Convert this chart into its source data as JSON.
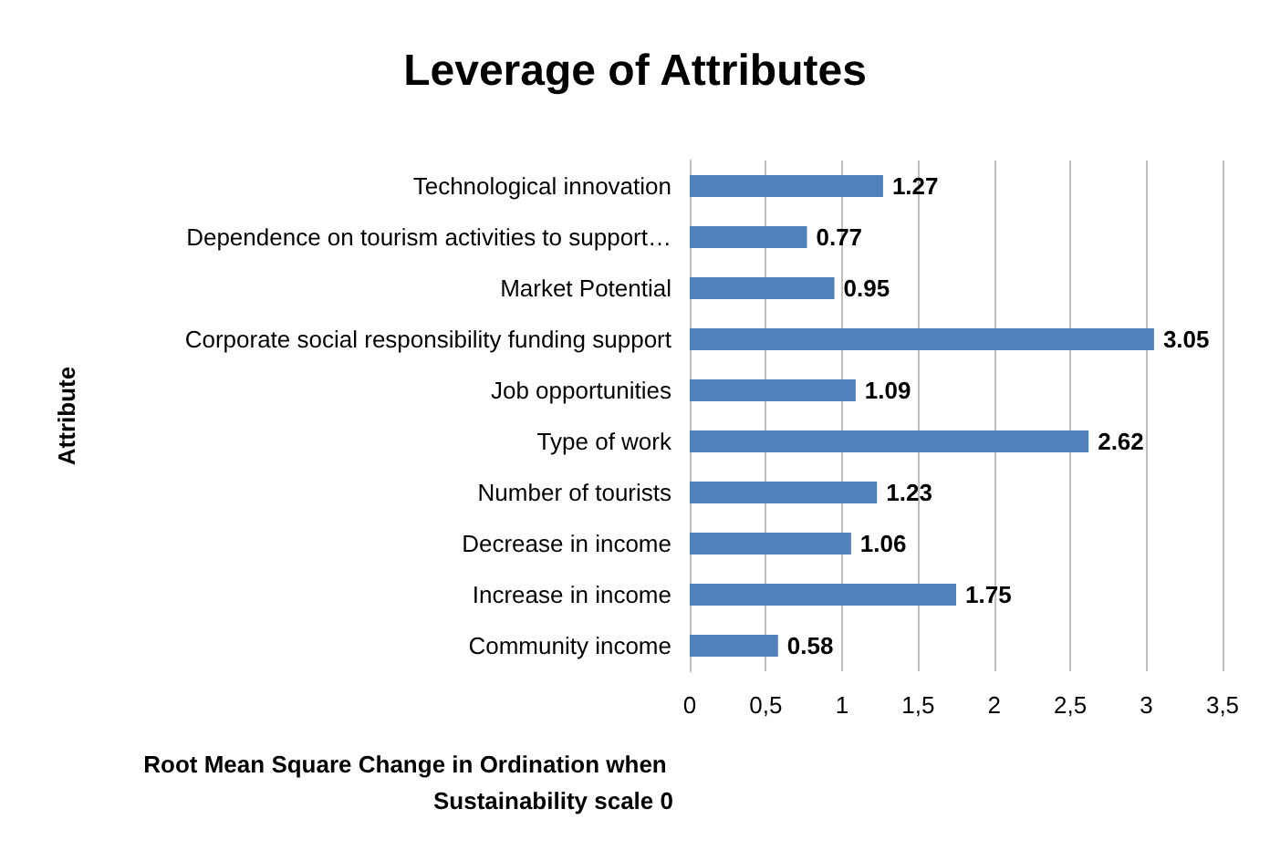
{
  "chart_data": {
    "type": "bar",
    "orientation": "horizontal",
    "title": "Leverage of Attributes",
    "xlabel": "Root Mean Square Change in Ordination when Sustainability scale 0",
    "ylabel": "Attribute",
    "categories": [
      "Technological innovation",
      "Dependence on tourism activities to support…",
      "Market Potential",
      "Corporate social responsibility funding support",
      "Job opportunities",
      "Type of work",
      "Number of tourists",
      "Decrease in income",
      "Increase in income",
      "Community income"
    ],
    "values": [
      1.27,
      0.77,
      0.95,
      3.05,
      1.09,
      2.62,
      1.23,
      1.06,
      1.75,
      0.58
    ],
    "color": "#4f81bd",
    "data_labels": true,
    "grid": "x",
    "xlim": [
      0,
      3.5
    ],
    "xticks": [
      0,
      {
        "value": 0.5,
        "label": "0,5"
      },
      1,
      {
        "value": 1.5,
        "label": "1,5"
      },
      2,
      {
        "value": 2.5,
        "label": "2,5"
      },
      3,
      {
        "value": 3.5,
        "label": "3,5"
      }
    ]
  }
}
